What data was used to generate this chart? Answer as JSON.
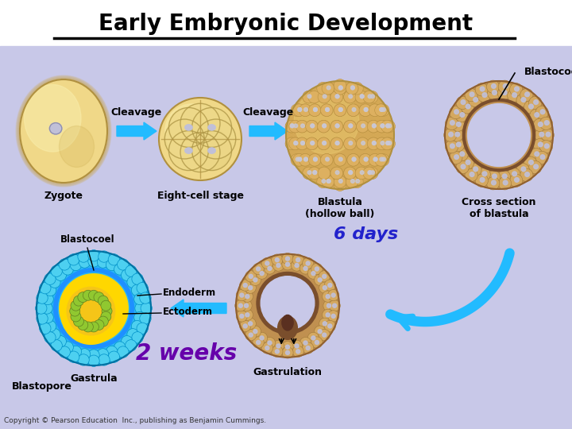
{
  "title": "Early Embryonic Development",
  "bg_color": "#C8C8E8",
  "title_color": "#000000",
  "title_fontsize": 20,
  "six_days_text": "6 days",
  "two_weeks_text": "2 weeks",
  "six_days_color": "#2222CC",
  "two_weeks_color": "#6600AA",
  "labels": {
    "zygote": "Zygote",
    "eight_cell": "Eight-cell stage",
    "blastula": "Blastula\n(hollow ball)",
    "cross_section": "Cross section\nof blastula",
    "blastocoel_top": "Blastocoel",
    "cleavage1": "Cleavage",
    "cleavage2": "Cleavage",
    "blastocoel_bot": "Blastocoel",
    "endoderm": "Endoderm",
    "ectoderm": "Ectoderm",
    "gastrula": "Gastrula",
    "blastopore": "Blastopore",
    "gastrulation": "Gastrulation",
    "copyright": "Copyright © Pearson Education  Inc., publishing as Benjamin Cummings."
  },
  "arrow_color": "#22BBFF",
  "zygote_base": "#F0D888",
  "zygote_highlight": "#F8EAA0",
  "zygote_shadow": "#C8A848",
  "eight_cell_base": "#F0D888",
  "blastula_base": "#D4A855",
  "blastula_cell": "#E0B860",
  "cross_outer": "#C09050",
  "cross_mid": "#8B5E3C",
  "cross_inner_bg": "#C8C8E8",
  "gastrulation_outer": "#C09050",
  "gastrulation_mid": "#7A4E2C",
  "gastrula_blue": "#29B6F6",
  "gastrula_blue_cell": "#00BFFF",
  "gastrula_blue_dark": "#1E90FF",
  "gastrula_yellow": "#FFD700",
  "gastrula_yellow2": "#F5C518",
  "gastrula_green": "#90C030"
}
